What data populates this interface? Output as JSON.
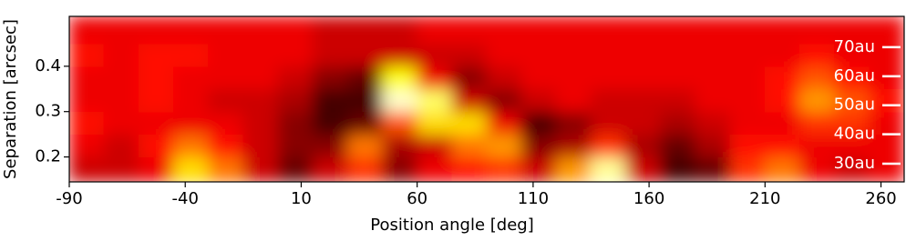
{
  "chart_data": {
    "type": "heatmap",
    "colormap": "hot",
    "xlabel": "Position angle [deg]",
    "ylabel": "Separation [arcsec]",
    "xlim": [
      -90,
      270
    ],
    "ylim": [
      0.145,
      0.51
    ],
    "xticks": [
      -90,
      -40,
      10,
      60,
      110,
      160,
      210,
      260
    ],
    "yticks": [
      0.2,
      0.3,
      0.4
    ],
    "x_bins": [
      -90,
      -75,
      -60,
      -45,
      -30,
      -15,
      0,
      15,
      30,
      45,
      60,
      75,
      90,
      105,
      120,
      135,
      150,
      165,
      180,
      195,
      210,
      225,
      240,
      255,
      270
    ],
    "y_bins": [
      0.145,
      0.2,
      0.25,
      0.3,
      0.35,
      0.4,
      0.45,
      0.51
    ],
    "values": [
      [
        0.3,
        0.3,
        0.35,
        0.7,
        0.55,
        0.3,
        0.15,
        0.3,
        0.45,
        0.2,
        0.35,
        0.4,
        0.45,
        0.3,
        0.6,
        0.9,
        0.3,
        0.1,
        0.15,
        0.45,
        0.55,
        0.35,
        0.3,
        0.35
      ],
      [
        0.35,
        0.3,
        0.4,
        0.55,
        0.4,
        0.3,
        0.2,
        0.2,
        0.55,
        0.25,
        0.3,
        0.55,
        0.6,
        0.2,
        0.25,
        0.45,
        0.25,
        0.15,
        0.25,
        0.4,
        0.4,
        0.35,
        0.35,
        0.35
      ],
      [
        0.4,
        0.35,
        0.35,
        0.35,
        0.35,
        0.3,
        0.2,
        0.1,
        0.15,
        0.5,
        0.7,
        0.7,
        0.35,
        0.1,
        0.2,
        0.3,
        0.3,
        0.25,
        0.3,
        0.35,
        0.35,
        0.45,
        0.45,
        0.35
      ],
      [
        0.35,
        0.35,
        0.4,
        0.35,
        0.3,
        0.3,
        0.25,
        0.1,
        0.1,
        0.95,
        0.85,
        0.3,
        0.2,
        0.3,
        0.35,
        0.3,
        0.3,
        0.3,
        0.35,
        0.35,
        0.4,
        0.6,
        0.5,
        0.4
      ],
      [
        0.35,
        0.35,
        0.4,
        0.35,
        0.35,
        0.35,
        0.3,
        0.2,
        0.15,
        0.75,
        0.35,
        0.2,
        0.3,
        0.35,
        0.35,
        0.35,
        0.35,
        0.35,
        0.35,
        0.35,
        0.4,
        0.5,
        0.4,
        0.35
      ],
      [
        0.4,
        0.35,
        0.4,
        0.4,
        0.35,
        0.35,
        0.35,
        0.3,
        0.3,
        0.3,
        0.3,
        0.3,
        0.35,
        0.35,
        0.35,
        0.35,
        0.35,
        0.35,
        0.35,
        0.35,
        0.35,
        0.4,
        0.35,
        0.35
      ],
      [
        0.35,
        0.35,
        0.35,
        0.35,
        0.35,
        0.35,
        0.35,
        0.3,
        0.3,
        0.3,
        0.35,
        0.35,
        0.35,
        0.35,
        0.35,
        0.35,
        0.35,
        0.35,
        0.35,
        0.35,
        0.35,
        0.35,
        0.35,
        0.35
      ]
    ],
    "annotations": [
      {
        "label": "30au",
        "value": 0.185
      },
      {
        "label": "40au",
        "value": 0.25
      },
      {
        "label": "50au",
        "value": 0.314
      },
      {
        "label": "60au",
        "value": 0.378
      },
      {
        "label": "70au",
        "value": 0.442
      }
    ]
  }
}
